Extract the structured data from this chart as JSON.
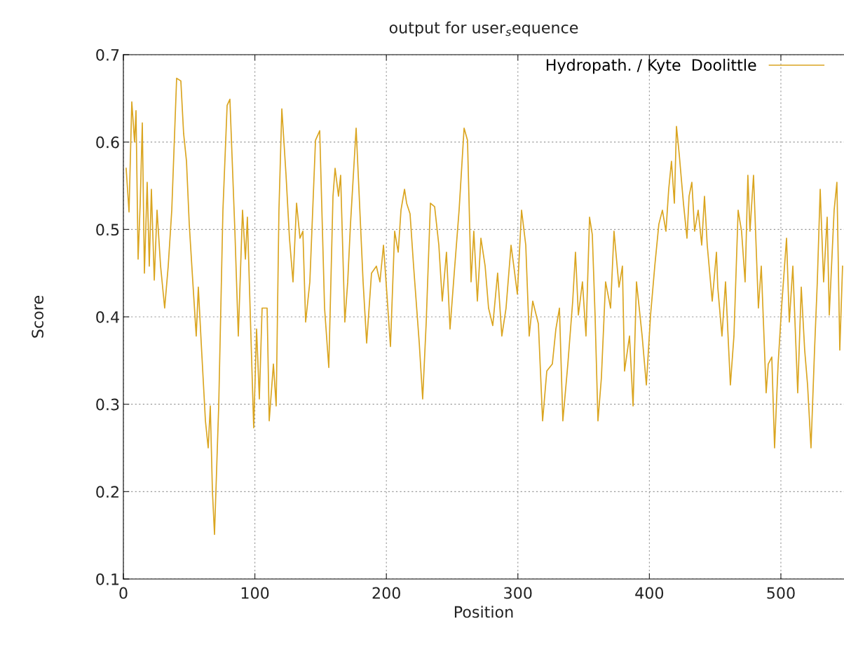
{
  "chart_data": {
    "type": "line",
    "title": "output for user$_{s}$equence",
    "xlabel": "Position",
    "ylabel": "Score",
    "x": [
      2.1,
      4.3,
      6.4,
      8.5,
      9.6,
      11.2,
      12.8,
      14.4,
      16.0,
      18.1,
      19.7,
      21.3,
      23.5,
      25.6,
      28.3,
      31.4,
      34.1,
      36.8,
      40.5,
      43.7,
      45.8,
      48.0,
      50.1,
      52.8,
      55.4,
      57.0,
      59.2,
      62.4,
      64.5,
      66.1,
      67.7,
      69.3,
      72.5,
      75.7,
      78.9,
      81.0,
      84.8,
      87.4,
      90.6,
      92.8,
      94.3,
      97.0,
      99.1,
      101.3,
      103.4,
      105.5,
      109.3,
      110.9,
      114.1,
      116.2,
      118.3,
      120.5,
      123.7,
      126.3,
      129.0,
      131.7,
      134.3,
      136.5,
      138.6,
      141.8,
      146.1,
      149.3,
      153.0,
      156.2,
      159.4,
      161.0,
      163.6,
      165.2,
      168.4,
      170.6,
      172.7,
      177.0,
      182.3,
      185.0,
      188.7,
      192.4,
      195.1,
      197.8,
      200.4,
      203.1,
      206.3,
      209.0,
      211.1,
      213.8,
      215.4,
      218.0,
      220.7,
      225.0,
      227.6,
      230.3,
      233.5,
      236.7,
      239.9,
      242.5,
      245.7,
      248.4,
      251.6,
      255.3,
      259.1,
      261.7,
      264.4,
      266.5,
      269.2,
      271.9,
      275.1,
      277.7,
      280.9,
      284.6,
      287.8,
      291.0,
      294.8,
      296.9,
      299.6,
      302.8,
      306.0,
      308.6,
      311.3,
      315.6,
      318.8,
      322.0,
      326.2,
      328.9,
      331.6,
      334.2,
      338.0,
      341.7,
      343.8,
      346.0,
      349.1,
      351.8,
      354.5,
      356.6,
      358.7,
      360.9,
      363.5,
      366.7,
      370.5,
      373.1,
      376.9,
      379.5,
      381.1,
      384.9,
      387.6,
      390.2,
      394.5,
      397.7,
      400.9,
      404.1,
      407.2,
      409.9,
      412.6,
      414.7,
      416.8,
      419.0,
      420.6,
      422.7,
      425.9,
      428.6,
      430.2,
      432.3,
      434.4,
      437.1,
      439.8,
      441.9,
      444.0,
      447.8,
      451.0,
      452.0,
      455.2,
      457.9,
      461.6,
      464.3,
      467.5,
      470.1,
      472.8,
      474.9,
      476.5,
      479.2,
      482.9,
      485.1,
      488.8,
      490.4,
      493.1,
      495.2,
      497.9,
      500.5,
      504.3,
      506.4,
      509.1,
      512.8,
      515.5,
      518.1,
      520.3,
      522.9,
      525.6,
      527.7,
      529.9,
      532.5,
      535.2,
      536.8,
      540.5,
      542.6,
      544.8,
      546.9
    ],
    "series": [
      {
        "name": "Hydropath. / Kyte  Doolittle",
        "color": "#daa520",
        "values": [
          0.57,
          0.52,
          0.646,
          0.6,
          0.636,
          0.466,
          0.53,
          0.622,
          0.45,
          0.554,
          0.458,
          0.546,
          0.442,
          0.522,
          0.458,
          0.41,
          0.458,
          0.522,
          0.673,
          0.67,
          0.61,
          0.578,
          0.506,
          0.44,
          0.378,
          0.434,
          0.37,
          0.281,
          0.25,
          0.298,
          0.201,
          0.151,
          0.298,
          0.522,
          0.642,
          0.649,
          0.498,
          0.378,
          0.522,
          0.466,
          0.514,
          0.378,
          0.273,
          0.386,
          0.306,
          0.41,
          0.41,
          0.281,
          0.346,
          0.298,
          0.522,
          0.638,
          0.562,
          0.49,
          0.44,
          0.53,
          0.49,
          0.498,
          0.394,
          0.44,
          0.602,
          0.613,
          0.41,
          0.342,
          0.538,
          0.57,
          0.538,
          0.562,
          0.394,
          0.44,
          0.506,
          0.616,
          0.44,
          0.37,
          0.45,
          0.458,
          0.44,
          0.482,
          0.426,
          0.366,
          0.498,
          0.474,
          0.522,
          0.546,
          0.53,
          0.518,
          0.458,
          0.37,
          0.306,
          0.394,
          0.53,
          0.526,
          0.482,
          0.418,
          0.474,
          0.386,
          0.45,
          0.522,
          0.616,
          0.602,
          0.44,
          0.498,
          0.418,
          0.49,
          0.458,
          0.41,
          0.39,
          0.45,
          0.378,
          0.41,
          0.482,
          0.458,
          0.426,
          0.522,
          0.482,
          0.378,
          0.418,
          0.392,
          0.281,
          0.338,
          0.346,
          0.386,
          0.41,
          0.281,
          0.346,
          0.418,
          0.474,
          0.402,
          0.44,
          0.378,
          0.514,
          0.494,
          0.402,
          0.281,
          0.33,
          0.44,
          0.41,
          0.498,
          0.434,
          0.458,
          0.338,
          0.378,
          0.298,
          0.44,
          0.378,
          0.322,
          0.402,
          0.458,
          0.506,
          0.522,
          0.498,
          0.546,
          0.578,
          0.53,
          0.618,
          0.586,
          0.53,
          0.49,
          0.538,
          0.554,
          0.498,
          0.522,
          0.482,
          0.538,
          0.482,
          0.418,
          0.474,
          0.434,
          0.378,
          0.44,
          0.322,
          0.378,
          0.522,
          0.498,
          0.44,
          0.562,
          0.498,
          0.562,
          0.41,
          0.458,
          0.313,
          0.346,
          0.354,
          0.25,
          0.346,
          0.41,
          0.49,
          0.394,
          0.458,
          0.313,
          0.434,
          0.362,
          0.322,
          0.25,
          0.362,
          0.44,
          0.546,
          0.44,
          0.514,
          0.402,
          0.522,
          0.554,
          0.362,
          0.458
        ]
      }
    ],
    "xlim": [
      0,
      548
    ],
    "xticks": [
      0,
      100,
      200,
      300,
      400,
      500
    ],
    "ylim": [
      0.1,
      0.7
    ],
    "yticks": [
      0.1,
      0.2,
      0.3,
      0.4,
      0.5,
      0.6,
      0.7
    ],
    "grid": true,
    "legend": "top right",
    "line_style": "solid",
    "marker": "none"
  }
}
